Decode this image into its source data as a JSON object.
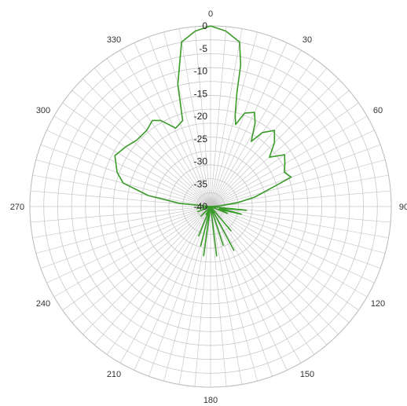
{
  "chart_data": {
    "type": "polar-line",
    "title": "",
    "angle_ticks": [
      {
        "angle": 0,
        "label": "0"
      },
      {
        "angle": 30,
        "label": "30"
      },
      {
        "angle": 60,
        "label": "60"
      },
      {
        "angle": 90,
        "label": "90"
      },
      {
        "angle": 120,
        "label": "120"
      },
      {
        "angle": 150,
        "label": "150"
      },
      {
        "angle": 180,
        "label": "180"
      },
      {
        "angle": 210,
        "label": "210"
      },
      {
        "angle": 240,
        "label": "240"
      },
      {
        "angle": 270,
        "label": "270"
      },
      {
        "angle": 300,
        "label": "300"
      },
      {
        "angle": 330,
        "label": "330"
      }
    ],
    "radial_ticks": [
      0,
      -5,
      -10,
      -15,
      -20,
      -25,
      -30,
      -35,
      -40
    ],
    "radial_labels": [
      "0",
      "-5",
      "-10",
      "-15",
      "-20",
      "-25",
      "-30",
      "-35",
      "-40"
    ],
    "r_range": [
      -40,
      0
    ],
    "angular_grid_step_deg": 5,
    "grid": true,
    "grid_color": "#c8c8c8",
    "line_color": "#3a9a2a",
    "series": [
      {
        "points": [
          [
            0,
            0
          ],
          [
            5,
            -1
          ],
          [
            10,
            -3
          ],
          [
            12,
            -8
          ],
          [
            13,
            -14
          ],
          [
            15,
            -19
          ],
          [
            17,
            -21
          ],
          [
            20,
            -18
          ],
          [
            25,
            -17
          ],
          [
            28,
            -19
          ],
          [
            32,
            -23
          ],
          [
            35,
            -20
          ],
          [
            40,
            -18
          ],
          [
            45,
            -20
          ],
          [
            50,
            -23
          ],
          [
            55,
            -20
          ],
          [
            60,
            -21
          ],
          [
            65,
            -22
          ],
          [
            70,
            -21
          ],
          [
            74,
            -27
          ],
          [
            78,
            -30
          ],
          [
            82,
            -34
          ],
          [
            86,
            -38
          ],
          [
            88,
            -40
          ],
          [
            92,
            -40
          ],
          [
            96,
            -32
          ],
          [
            100,
            -38
          ],
          [
            104,
            -33
          ],
          [
            108,
            -38
          ],
          [
            112,
            -36
          ],
          [
            118,
            -40
          ],
          [
            130,
            -40
          ],
          [
            140,
            -33
          ],
          [
            145,
            -40
          ],
          [
            152,
            -29
          ],
          [
            155,
            -40
          ],
          [
            162,
            -31
          ],
          [
            165,
            -40
          ],
          [
            170,
            -40
          ],
          [
            173,
            -29
          ],
          [
            176,
            -40
          ],
          [
            180,
            -40
          ],
          [
            185,
            -40
          ],
          [
            188,
            -29
          ],
          [
            190,
            -40
          ],
          [
            194,
            -31
          ],
          [
            198,
            -40
          ],
          [
            202,
            -33
          ],
          [
            206,
            -40
          ],
          [
            210,
            -38
          ],
          [
            216,
            -40
          ],
          [
            225,
            -37
          ],
          [
            232,
            -40
          ],
          [
            240,
            -40
          ],
          [
            248,
            -37
          ],
          [
            255,
            -40
          ],
          [
            262,
            -37
          ],
          [
            268,
            -40
          ],
          [
            272,
            -40
          ],
          [
            276,
            -33
          ],
          [
            280,
            -26
          ],
          [
            285,
            -20
          ],
          [
            290,
            -18
          ],
          [
            298,
            -16
          ],
          [
            305,
            -17
          ],
          [
            312,
            -18
          ],
          [
            320,
            -18
          ],
          [
            326,
            -17
          ],
          [
            330,
            -18
          ],
          [
            336,
            -21
          ],
          [
            342,
            -20
          ],
          [
            345,
            -12
          ],
          [
            350,
            -3
          ],
          [
            355,
            -1
          ],
          [
            360,
            0
          ]
        ]
      }
    ]
  }
}
